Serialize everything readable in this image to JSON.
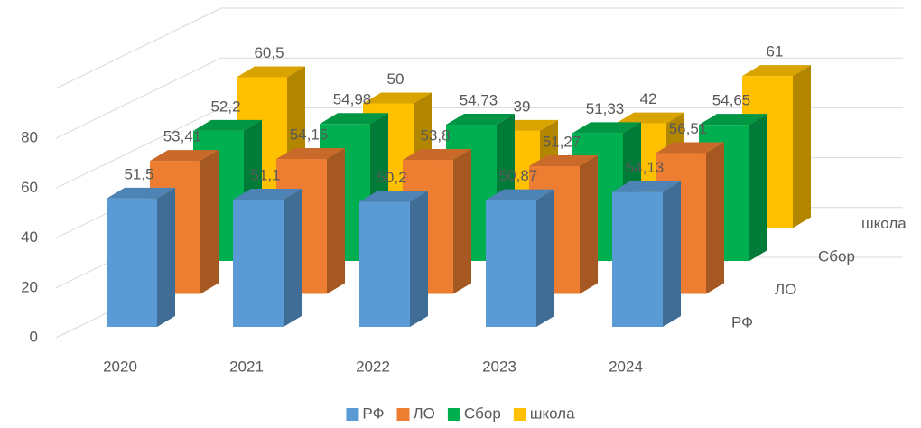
{
  "chart_data": {
    "type": "bar3d",
    "categories": [
      "2020",
      "2021",
      "2022",
      "2023",
      "2024"
    ],
    "series": [
      {
        "name": "РФ",
        "color": "#5b9bd5",
        "values": [
          51.5,
          51.1,
          50.2,
          50.87,
          54.13
        ],
        "value_labels": [
          "51,5",
          "51,1",
          "50,2",
          "50,87",
          "54,13"
        ]
      },
      {
        "name": "ЛО",
        "color": "#ed7d31",
        "values": [
          53.41,
          54.15,
          53.8,
          51.27,
          56.51
        ],
        "value_labels": [
          "53,41",
          "54,15",
          "53,8",
          "51,27",
          "56,51"
        ]
      },
      {
        "name": "Сбор",
        "color": "#00b050",
        "values": [
          52.2,
          54.98,
          54.73,
          51.33,
          54.65
        ],
        "value_labels": [
          "52,2",
          "54,98",
          "54,73",
          "51,33",
          "54,65"
        ]
      },
      {
        "name": "школа",
        "color": "#ffc000",
        "values": [
          60.5,
          50,
          39,
          42,
          61
        ],
        "value_labels": [
          "60,5",
          "50",
          "39",
          "42",
          "61"
        ]
      }
    ],
    "ylim": [
      0,
      100
    ],
    "yticks": [
      0,
      20,
      40,
      60,
      80
    ],
    "grid": true,
    "legend": "bottom"
  }
}
